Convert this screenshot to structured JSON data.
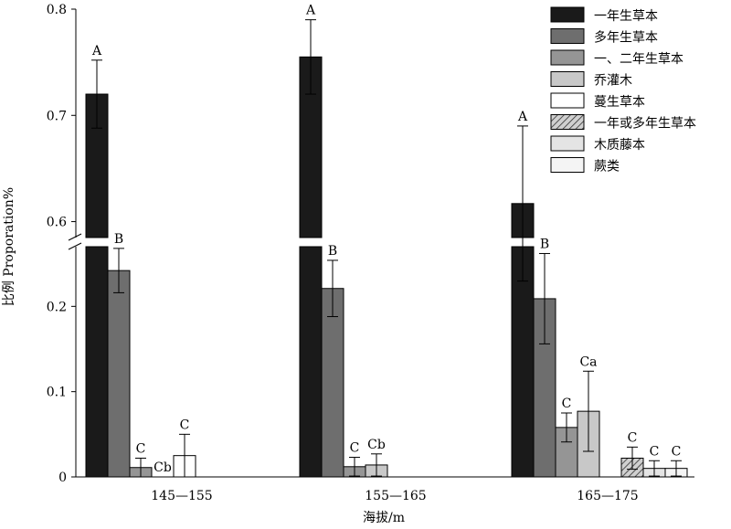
{
  "chart_data": {
    "type": "bar",
    "ylabel": "比例 Proporation%",
    "xlabel": "海拔/m",
    "categories": [
      "145—155",
      "155—165",
      "165—175"
    ],
    "y_axis_break": {
      "lower_range": [
        0,
        0.27
      ],
      "upper_range": [
        0.585,
        0.8
      ],
      "lower_ticks": [
        "0",
        "0.1",
        "0.2"
      ],
      "upper_ticks": [
        "0.6",
        "0.7",
        "0.8"
      ]
    },
    "series": [
      {
        "name": "一年生草本",
        "color": "#1a1a1a",
        "pattern": "solid",
        "values": [
          0.72,
          0.755,
          0.617
        ],
        "errors": [
          0.032,
          0.035,
          0.073
        ],
        "labels": [
          "A",
          "A",
          "A"
        ]
      },
      {
        "name": "多年生草本",
        "color": "#6e6e6e",
        "pattern": "solid",
        "values": [
          0.242,
          0.221,
          0.209
        ],
        "errors": [
          0.026,
          0.033,
          0.053
        ],
        "labels": [
          "B",
          "B",
          "B"
        ]
      },
      {
        "name": "一、二年生草本",
        "color": "#959595",
        "pattern": "solid",
        "values": [
          0.011,
          0.012,
          0.058
        ],
        "errors": [
          0.011,
          0.011,
          0.017
        ],
        "labels": [
          "C",
          "C",
          "C"
        ]
      },
      {
        "name": "乔灌木",
        "color": "#c8c8c8",
        "pattern": "solid",
        "values": [
          0,
          0.014,
          0.077
        ],
        "errors": [
          0,
          0.013,
          0.047
        ],
        "labels": [
          "Cb",
          "Cb",
          "Ca"
        ]
      },
      {
        "name": "蔓生草本",
        "color": "#ffffff",
        "pattern": "solid",
        "values": [
          0.025,
          0,
          0
        ],
        "errors": [
          0.025,
          0,
          0
        ],
        "labels": [
          "C",
          "",
          ""
        ]
      },
      {
        "name": "一年或多年生草本",
        "color": "#b4b4b4",
        "pattern": "hatched",
        "values": [
          0,
          0,
          0.022
        ],
        "errors": [
          0,
          0,
          0.013
        ],
        "labels": [
          "",
          "",
          "C"
        ]
      },
      {
        "name": "木质藤本",
        "color": "#e4e4e4",
        "pattern": "solid",
        "values": [
          0,
          0,
          0.01
        ],
        "errors": [
          0,
          0,
          0.009
        ],
        "labels": [
          "",
          "",
          "C"
        ]
      },
      {
        "name": "蕨类",
        "color": "#f4f4f4",
        "pattern": "solid",
        "values": [
          0,
          0,
          0.01
        ],
        "errors": [
          0,
          0,
          0.009
        ],
        "labels": [
          "",
          "",
          "C"
        ]
      }
    ]
  }
}
